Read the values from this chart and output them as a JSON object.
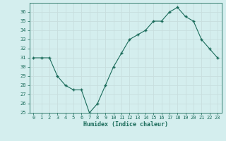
{
  "x": [
    0,
    1,
    2,
    3,
    4,
    5,
    6,
    7,
    8,
    9,
    10,
    11,
    12,
    13,
    14,
    15,
    16,
    17,
    18,
    19,
    20,
    21,
    22,
    23
  ],
  "y": [
    31,
    31,
    31,
    29,
    28,
    27.5,
    27.5,
    25,
    26,
    28,
    30,
    31.5,
    33,
    33.5,
    34,
    35,
    35,
    36,
    36.5,
    35.5,
    35,
    33,
    32,
    31
  ],
  "line_color": "#1a6b5a",
  "marker_color": "#1a6b5a",
  "bg_color": "#d4eeee",
  "grid_color": "#c8dede",
  "xlabel": "Humidex (Indice chaleur)",
  "ylim": [
    25,
    37
  ],
  "xlim": [
    -0.5,
    23.5
  ],
  "yticks": [
    25,
    26,
    27,
    28,
    29,
    30,
    31,
    32,
    33,
    34,
    35,
    36
  ],
  "xticks": [
    0,
    1,
    2,
    3,
    4,
    5,
    6,
    7,
    8,
    9,
    10,
    11,
    12,
    13,
    14,
    15,
    16,
    17,
    18,
    19,
    20,
    21,
    22,
    23
  ]
}
